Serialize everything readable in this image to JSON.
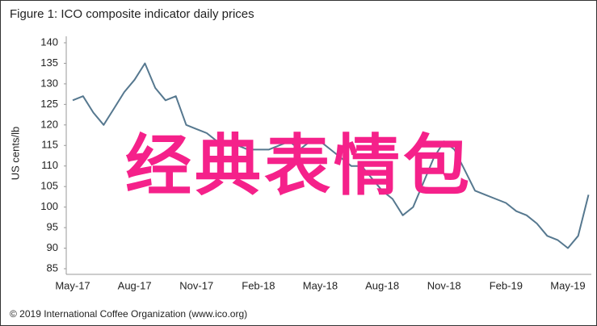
{
  "chart_data": {
    "type": "line",
    "title": "Figure 1: ICO composite indicator daily prices",
    "y_label": "US cents/lb",
    "annotation": "经典表情包",
    "source": "© 2019 International Coffee Organization (www.ico.org)",
    "categories": [
      "May-17",
      null,
      null,
      null,
      null,
      null,
      "Aug-17",
      null,
      null,
      null,
      null,
      null,
      "Nov-17",
      null,
      null,
      null,
      null,
      null,
      "Feb-18",
      null,
      null,
      null,
      null,
      null,
      "May-18",
      null,
      null,
      null,
      null,
      null,
      "Aug-18",
      null,
      null,
      null,
      null,
      null,
      "Nov-18",
      null,
      null,
      null,
      null,
      null,
      "Feb-19",
      null,
      null,
      null,
      null,
      null,
      "May-19",
      null,
      null
    ],
    "values": [
      126,
      127,
      123,
      120,
      124,
      128,
      131,
      135,
      129,
      126,
      127,
      120,
      119,
      118,
      116,
      115,
      115,
      114,
      114,
      114,
      115,
      116,
      114,
      116,
      116,
      114,
      112,
      110,
      110,
      107,
      104,
      102,
      98,
      100,
      106,
      112,
      116,
      114,
      109,
      104,
      103,
      102,
      101,
      99,
      98,
      96,
      93,
      92,
      90,
      93,
      103
    ],
    "color": "#56788f",
    "ylim": [
      85,
      140
    ],
    "yticks": [
      85,
      90,
      95,
      100,
      105,
      110,
      115,
      120,
      125,
      130,
      135,
      140
    ],
    "grid": false
  }
}
